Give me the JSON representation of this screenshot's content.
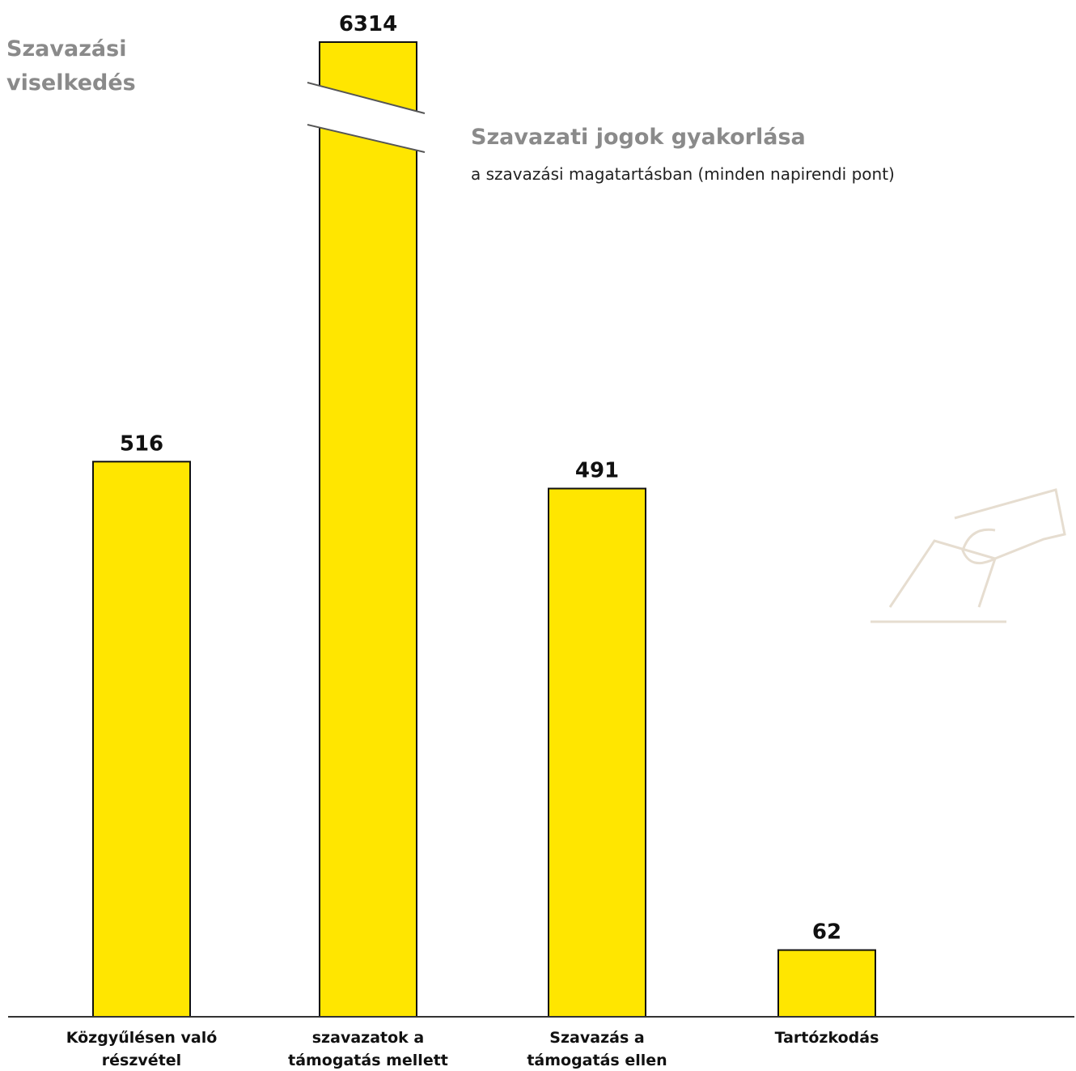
{
  "chart_data": {
    "type": "bar",
    "title": "Szavazási viselkedés",
    "subtitle": "Szavazati jogok gyakorlása",
    "annotation": "a szavazási magatartásban (minden napirendi pont)",
    "categories": [
      "Közgyűlésen való részvétel",
      "szavazatok a támogatás mellett",
      "Szavazás a támogatás ellen",
      "Tartózkodás"
    ],
    "values": [
      516,
      6314,
      491,
      62
    ],
    "color": "#ffe600",
    "ylim": [
      0,
      906
    ],
    "axis_break": true
  }
}
